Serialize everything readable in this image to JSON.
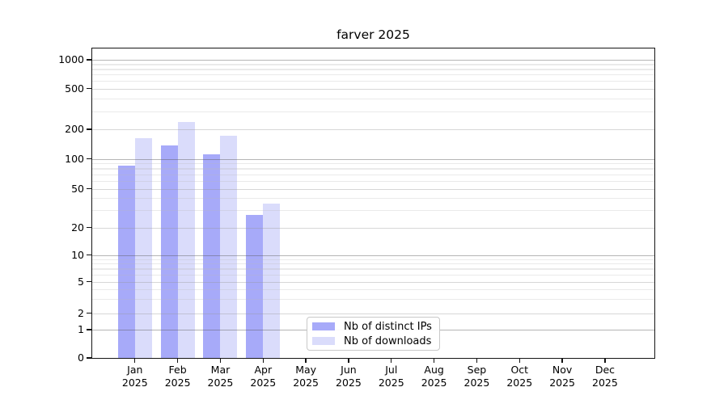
{
  "figure": {
    "title": "farver 2025"
  },
  "x_axis": {
    "months": [
      "Jan",
      "Feb",
      "Mar",
      "Apr",
      "May",
      "Jun",
      "Jul",
      "Aug",
      "Sep",
      "Oct",
      "Nov",
      "Dec"
    ],
    "year": "2025"
  },
  "y_axis": {
    "tick_labels": [
      "1000",
      "500",
      "200",
      "100",
      "50",
      "20",
      "10",
      "5",
      "2",
      "1",
      "0"
    ]
  },
  "legend": {
    "items": [
      {
        "label": "Nb of distinct IPs",
        "color": "#a7aaf9"
      },
      {
        "label": "Nb of downloads",
        "color": "#dadcfb"
      }
    ]
  },
  "chart_data": {
    "type": "bar",
    "title": "farver 2025",
    "categories": [
      "Jan 2025",
      "Feb 2025",
      "Mar 2025",
      "Apr 2025",
      "May 2025",
      "Jun 2025",
      "Jul 2025",
      "Aug 2025",
      "Sep 2025",
      "Oct 2025",
      "Nov 2025",
      "Dec 2025"
    ],
    "series": [
      {
        "name": "Nb of distinct IPs",
        "color": "#a7aaf9",
        "values": [
          86,
          138,
          111,
          27,
          null,
          null,
          null,
          null,
          null,
          null,
          null,
          null
        ]
      },
      {
        "name": "Nb of downloads",
        "color": "#dadcfb",
        "values": [
          162,
          235,
          172,
          35,
          null,
          null,
          null,
          null,
          null,
          null,
          null,
          null
        ]
      }
    ],
    "xlabel": "",
    "ylabel": "",
    "yscale": "symlog",
    "yticks": [
      0,
      1,
      2,
      5,
      10,
      20,
      50,
      100,
      200,
      500,
      1000
    ],
    "ylim": [
      0,
      1330
    ],
    "grid": true,
    "legend_position": "lower center"
  }
}
